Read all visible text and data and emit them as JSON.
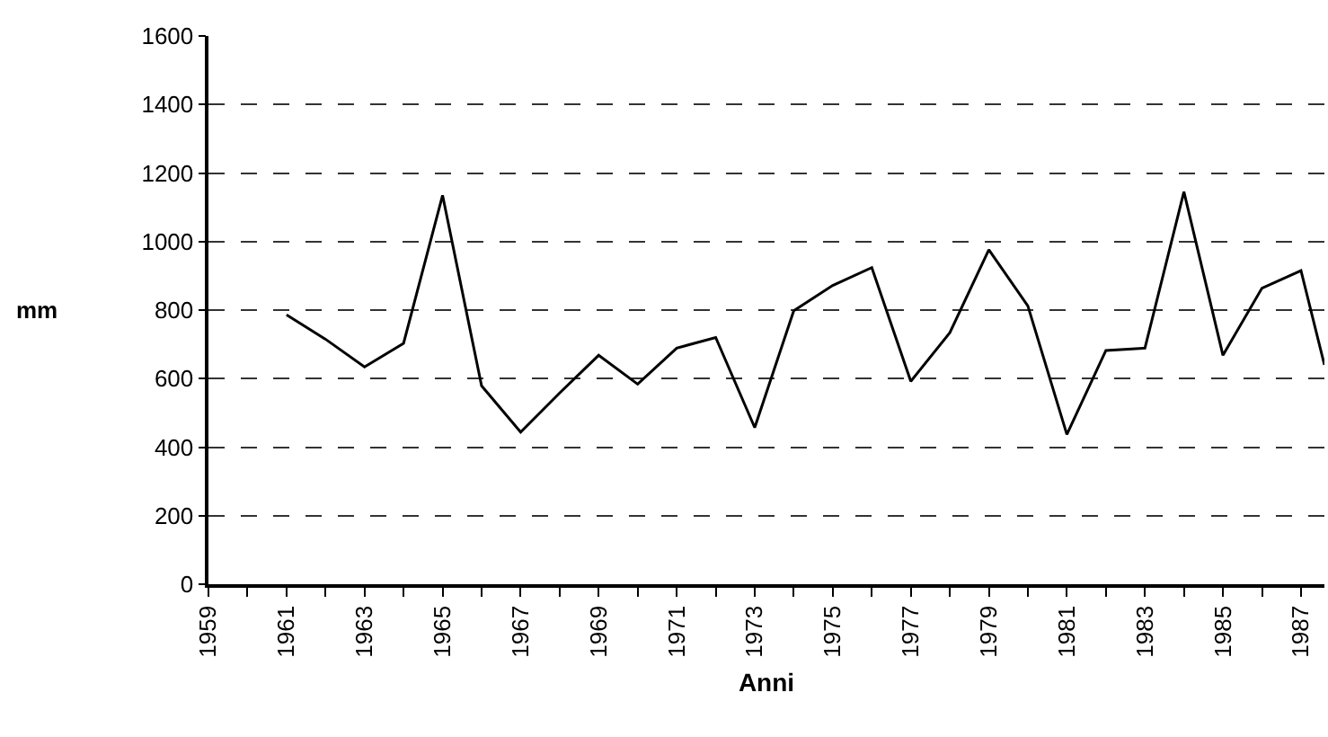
{
  "chart_data": {
    "type": "line",
    "xlabel": "Anni",
    "ylabel": "mm",
    "x": [
      1961,
      1962,
      1963,
      1964,
      1965,
      1966,
      1967,
      1968,
      1969,
      1970,
      1971,
      1972,
      1973,
      1974,
      1975,
      1976,
      1977,
      1978,
      1979,
      1980,
      1981,
      1982,
      1983,
      1984,
      1985,
      1986,
      1987,
      1987.6
    ],
    "series": [
      {
        "color": "#000000",
        "values": [
          786,
          715,
          634,
          703,
          1135,
          579,
          444,
          558,
          668,
          584,
          689,
          720,
          457,
          798,
          872,
          924,
          592,
          734,
          976,
          812,
          437,
          682,
          689,
          1145,
          668,
          864,
          915,
          640
        ]
      }
    ],
    "xlim": [
      1959,
      1987.6
    ],
    "xticks": [
      1959,
      {
        "value": 1960,
        "label": null
      },
      1961,
      {
        "value": 1962,
        "label": null
      },
      1963,
      {
        "value": 1964,
        "label": null
      },
      1965,
      {
        "value": 1966,
        "label": null
      },
      1967,
      {
        "value": 1968,
        "label": null
      },
      1969,
      {
        "value": 1970,
        "label": null
      },
      1971,
      {
        "value": 1972,
        "label": null
      },
      1973,
      {
        "value": 1974,
        "label": null
      },
      1975,
      {
        "value": 1976,
        "label": null
      },
      1977,
      {
        "value": 1978,
        "label": null
      },
      1979,
      {
        "value": 1980,
        "label": null
      },
      1981,
      {
        "value": 1982,
        "label": null
      },
      1983,
      {
        "value": 1984,
        "label": null
      },
      1985,
      {
        "value": 1986,
        "label": null
      },
      1987
    ],
    "ylim": [
      0,
      1600
    ],
    "yticks": [
      0,
      200,
      400,
      600,
      800,
      1000,
      1200,
      1400,
      1600
    ],
    "grid": "y",
    "legend": false,
    "marker": "none",
    "line_style": "solid"
  }
}
